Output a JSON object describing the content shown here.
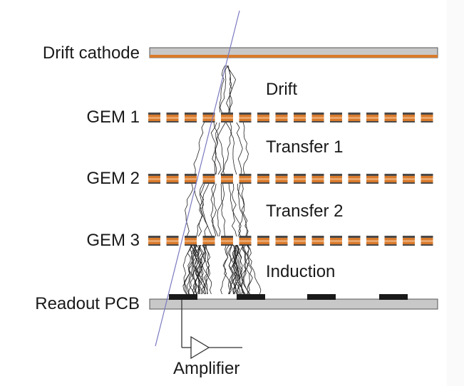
{
  "labels": {
    "drift_cathode": "Drift cathode",
    "gem1": "GEM 1",
    "gem2": "GEM 2",
    "gem3": "GEM 3",
    "readout": "Readout PCB",
    "amplifier": "Amplifier"
  },
  "regions": {
    "drift": "Drift",
    "transfer1": "Transfer 1",
    "transfer2": "Transfer 2",
    "induction": "Induction"
  },
  "colors": {
    "copper": "#d97a2b",
    "electrode_dark": "#4a4a4a",
    "plate_fill": "#c8c8c8",
    "track_line": "#7b79c0",
    "avalanche": "#222222",
    "pad": "#1a1a1a"
  },
  "icons": {
    "amplifier": "amplifier-triangle-icon"
  }
}
